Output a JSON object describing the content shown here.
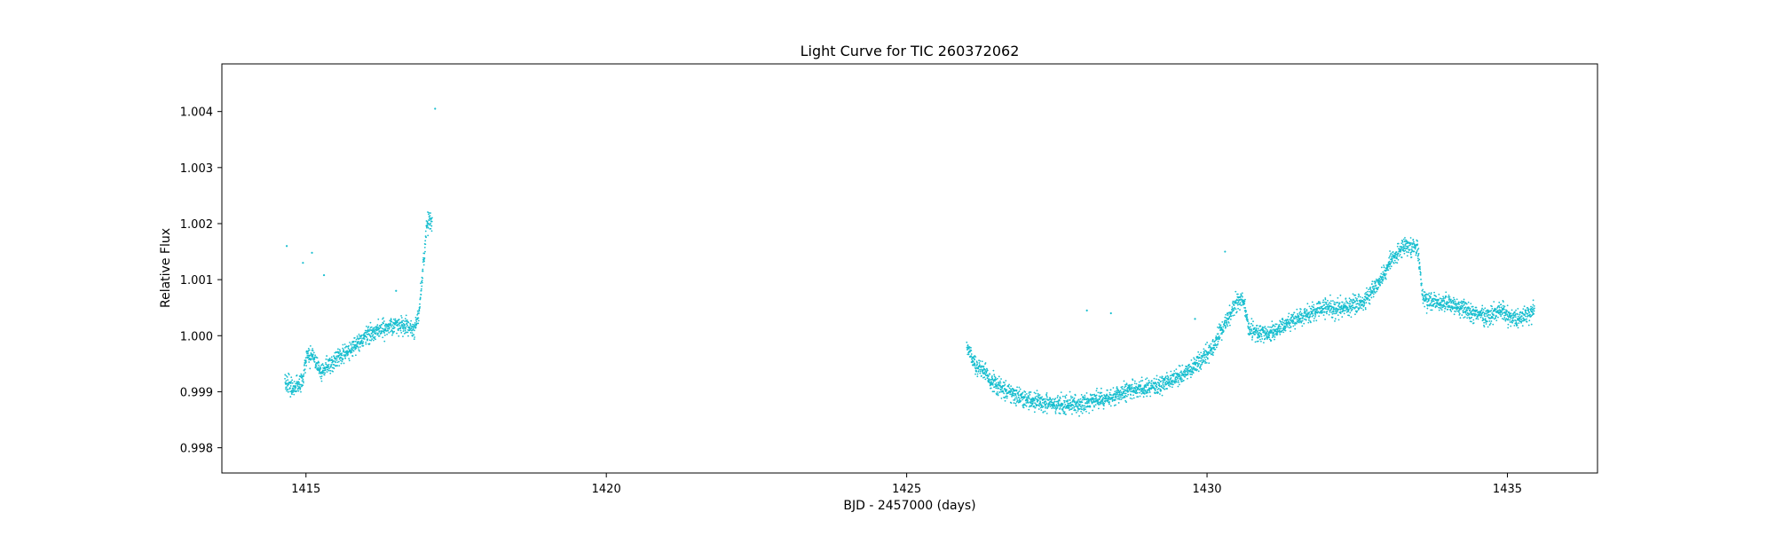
{
  "chart_data": {
    "type": "scatter",
    "title": "Light Curve for TIC 260372062",
    "xlabel": "BJD - 2457000 (days)",
    "ylabel": "Relative Flux",
    "xlim": [
      1413.6,
      1436.5
    ],
    "ylim": [
      0.99755,
      1.00485
    ],
    "xticks": [
      1415,
      1420,
      1425,
      1430,
      1435
    ],
    "xtick_labels": [
      "1415",
      "1420",
      "1425",
      "1430",
      "1435"
    ],
    "yticks": [
      0.998,
      0.999,
      1.0,
      1.001,
      1.002,
      1.003,
      1.004
    ],
    "ytick_labels": [
      "0.998",
      "0.999",
      "1.000",
      "1.001",
      "1.002",
      "1.003",
      "1.004"
    ],
    "grid": false,
    "legend": "none",
    "marker_color": "#17becf",
    "series": [
      {
        "x": [
          1414.65,
          1414.8,
          1414.95,
          1415.0,
          1415.1,
          1415.25,
          1415.35,
          1415.5,
          1415.8,
          1416.0,
          1416.2,
          1416.4,
          1416.6,
          1416.8,
          1416.88,
          1416.95,
          1417.0,
          1417.05,
          1417.1
        ],
        "y": [
          0.9992,
          0.99905,
          0.9992,
          0.9996,
          0.99965,
          0.99935,
          0.99945,
          0.9996,
          0.9998,
          1.0,
          1.0001,
          1.00015,
          1.0002,
          1.0001,
          1.0004,
          1.0012,
          1.0019,
          1.0021,
          1.002
        ]
      },
      {
        "x": [
          1426.0,
          1426.15,
          1426.3,
          1426.5,
          1426.8,
          1427.0,
          1427.3,
          1427.6,
          1428.0,
          1428.4,
          1428.8,
          1429.2,
          1429.6,
          1429.9,
          1430.1,
          1430.3,
          1430.5,
          1430.6,
          1430.7,
          1431.0,
          1431.3,
          1431.7,
          1432.0,
          1432.3,
          1432.6,
          1432.9,
          1433.1,
          1433.3,
          1433.5,
          1433.6,
          1433.8,
          1434.1,
          1434.4,
          1434.7,
          1434.9,
          1435.1,
          1435.3,
          1435.45
        ],
        "y": [
          0.9998,
          0.9995,
          0.99935,
          0.9991,
          0.99895,
          0.99885,
          0.9988,
          0.99875,
          0.9988,
          0.9989,
          0.99905,
          0.9991,
          0.9993,
          0.99955,
          0.9998,
          1.0002,
          1.0006,
          1.00065,
          1.0001,
          1.0,
          1.0002,
          1.0004,
          1.0005,
          1.0005,
          1.0006,
          1.001,
          1.0014,
          1.0016,
          1.0016,
          1.00065,
          1.0006,
          1.00055,
          1.0004,
          1.00035,
          1.00045,
          1.0003,
          1.00035,
          1.00045
        ]
      }
    ],
    "outliers": [
      {
        "x": 1414.68,
        "y": 1.0016
      },
      {
        "x": 1414.95,
        "y": 1.0013
      },
      {
        "x": 1415.1,
        "y": 1.00148
      },
      {
        "x": 1415.3,
        "y": 1.00108
      },
      {
        "x": 1417.15,
        "y": 1.00405
      },
      {
        "x": 1416.5,
        "y": 1.0008
      },
      {
        "x": 1428.0,
        "y": 1.00045
      },
      {
        "x": 1428.4,
        "y": 1.0004
      },
      {
        "x": 1429.8,
        "y": 1.0003
      },
      {
        "x": 1430.3,
        "y": 1.0015
      }
    ]
  }
}
